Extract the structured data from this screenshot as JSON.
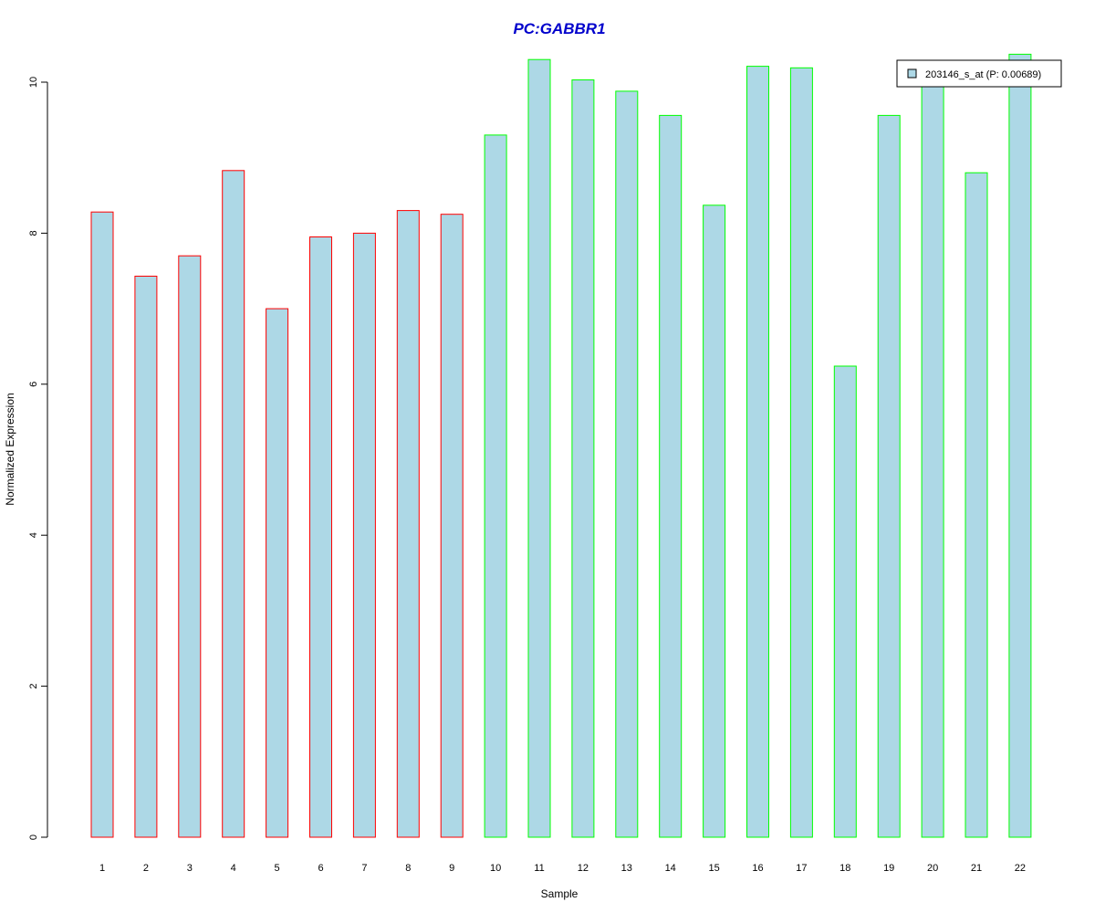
{
  "chart_data": {
    "type": "bar",
    "title": "PC:GABBR1",
    "xlabel": "Sample",
    "ylabel": "Normalized Expression",
    "categories": [
      "1",
      "2",
      "3",
      "4",
      "5",
      "6",
      "7",
      "8",
      "9",
      "10",
      "11",
      "12",
      "13",
      "14",
      "15",
      "16",
      "17",
      "18",
      "19",
      "20",
      "21",
      "22"
    ],
    "series": [
      {
        "name": "203146_s_at (P: 0.00689)",
        "values": [
          8.28,
          7.43,
          7.7,
          8.83,
          7.0,
          7.95,
          8.0,
          8.3,
          8.25,
          9.3,
          10.3,
          10.03,
          9.88,
          9.56,
          8.37,
          10.21,
          10.19,
          6.24,
          9.56,
          10.0,
          8.8,
          10.37
        ]
      }
    ],
    "yticks": [
      0,
      2,
      4,
      6,
      8,
      10
    ],
    "ylim": [
      0,
      10.4
    ],
    "grid": false,
    "legend_position": "top-right",
    "colors": {
      "title": "#0000cc",
      "bar_fill": "#add8e6",
      "group1_border": "#ff0000",
      "group2_border": "#00ff00",
      "axis": "#000000"
    },
    "bar_group_of_each_bar": [
      1,
      1,
      1,
      1,
      1,
      1,
      1,
      1,
      1,
      2,
      2,
      2,
      2,
      2,
      2,
      2,
      2,
      2,
      2,
      2,
      2,
      2
    ]
  }
}
